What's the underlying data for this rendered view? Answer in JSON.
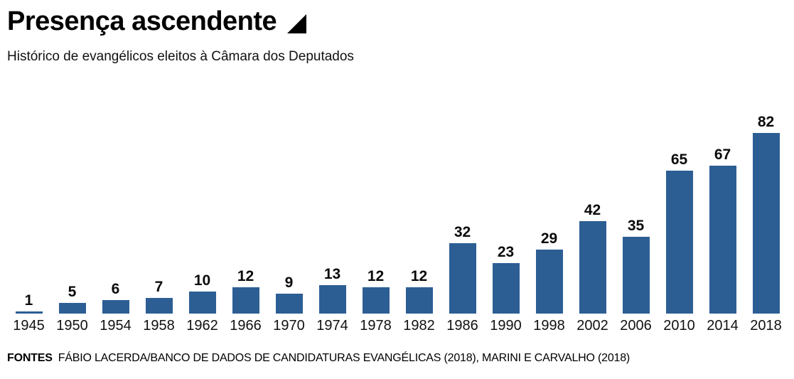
{
  "header": {
    "title": "Presença ascendente",
    "title_icon": "ascending-triangle",
    "subtitle": "Histórico de evangélicos eleitos à Câmara dos Deputados"
  },
  "footer": {
    "label": "FONTES",
    "text": "FÁBIO LACERDA/BANCO DE DADOS DE CANDIDATURAS EVANGÉLICAS (2018), MARINI E CARVALHO (2018)"
  },
  "colors": {
    "bar": "#2c5e94",
    "text": "#000000",
    "background": "#ffffff"
  },
  "chart_data": {
    "type": "bar",
    "title": "Presença ascendente",
    "subtitle": "Histórico de evangélicos eleitos à Câmara dos Deputados",
    "categories": [
      "1945",
      "1950",
      "1954",
      "1958",
      "1962",
      "1966",
      "1970",
      "1974",
      "1978",
      "1982",
      "1986",
      "1990",
      "1998",
      "2002",
      "2006",
      "2010",
      "2014",
      "2018"
    ],
    "values": [
      1,
      5,
      6,
      7,
      10,
      12,
      9,
      13,
      12,
      12,
      32,
      23,
      29,
      42,
      35,
      65,
      67,
      82
    ],
    "xlabel": "",
    "ylabel": "",
    "ylim": [
      0,
      82
    ],
    "grid": false,
    "legend": null,
    "bar_color": "#2c5e94",
    "value_labels": true
  }
}
